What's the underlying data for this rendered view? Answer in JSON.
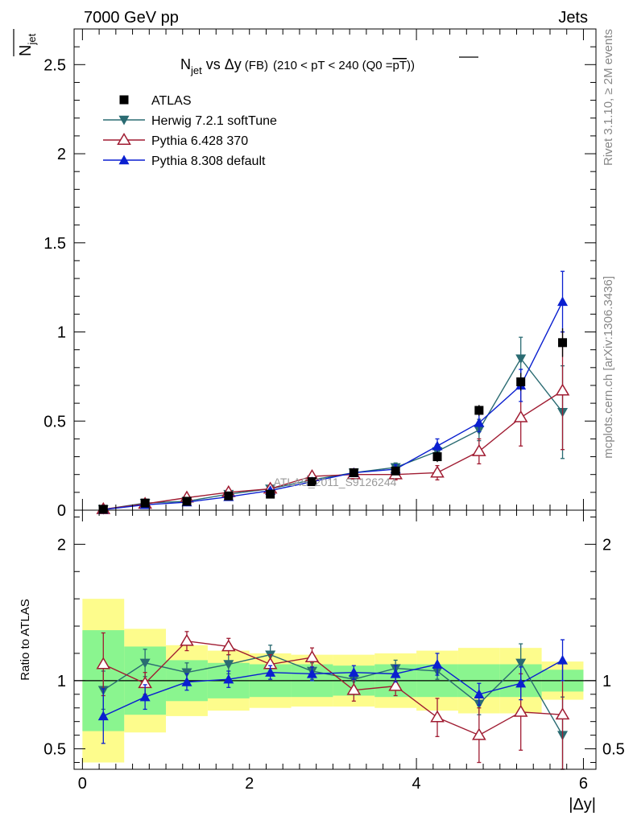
{
  "header": {
    "left": "7000 GeV pp",
    "right": "Jets"
  },
  "side_labels": {
    "top": "Rivet 3.1.10, ≥ 2M events",
    "bottom": "mcplots.cern.ch [arXiv:1306.3436]"
  },
  "chart_data": {
    "type": "line",
    "title_parts": {
      "n": "N",
      "jet_sub": "jet",
      "vs": " vs ",
      "delta": "Δy",
      "fb": "(FB)",
      "range": "(210 < pT < 240 (Q0 =",
      "pt": "pT",
      "close": "))"
    },
    "watermark": "ATLAS_2011_S9126244",
    "ylabel_main": {
      "n": "N",
      "sub": "jet"
    },
    "ylabel_ratio": "Ratio to ATLAS",
    "xlabel": "|Δy|",
    "xlim": [
      -0.1,
      6.15
    ],
    "ylim_main": [
      0,
      2.7
    ],
    "ylim_ratio": [
      0.35,
      2.25
    ],
    "x_ticks": [
      "0",
      "2",
      "4",
      "6"
    ],
    "y_ticks_main": [
      "0",
      "0.5",
      "1",
      "1.5",
      "2",
      "2.5"
    ],
    "y_ticks_ratio": [
      "0.5",
      "1",
      "2"
    ],
    "x": [
      0.25,
      0.75,
      1.25,
      1.75,
      2.25,
      2.75,
      3.25,
      3.75,
      4.25,
      4.75,
      5.25,
      5.75
    ],
    "bin_edges": [
      0.0,
      0.5,
      1.0,
      1.5,
      2.0,
      2.5,
      3.0,
      3.5,
      4.0,
      4.5,
      5.0,
      5.5,
      6.0
    ],
    "data": {
      "name": "ATLAS",
      "color": "#000000",
      "values": [
        0.005,
        0.04,
        0.05,
        0.08,
        0.09,
        0.16,
        0.21,
        0.22,
        0.3,
        0.56,
        0.72,
        0.94
      ],
      "errors": [
        0.003,
        0.005,
        0.006,
        0.008,
        0.01,
        0.012,
        0.015,
        0.02,
        0.03,
        0.03,
        0.05,
        0.08
      ]
    },
    "band_inner": [
      0.37,
      0.25,
      0.15,
      0.13,
      0.12,
      0.12,
      0.11,
      0.12,
      0.12,
      0.12,
      0.12,
      0.08
    ],
    "band_outer": [
      0.6,
      0.38,
      0.26,
      0.22,
      0.2,
      0.19,
      0.19,
      0.2,
      0.22,
      0.24,
      0.24,
      0.14
    ],
    "series": [
      {
        "name": "Herwig 7.2.1 softTune",
        "color": "#2a6b72",
        "marker": "triangle-down",
        "values": [
          0.004,
          0.04,
          0.05,
          0.09,
          0.12,
          0.17,
          0.21,
          0.24,
          0.33,
          0.45,
          0.85,
          0.55
        ],
        "errors": [
          0.002,
          0.006,
          0.006,
          0.01,
          0.012,
          0.015,
          0.02,
          0.025,
          0.04,
          0.06,
          0.12,
          0.26
        ],
        "ratio": [
          0.93,
          1.13,
          1.06,
          1.12,
          1.19,
          1.07,
          1.01,
          1.09,
          1.07,
          0.83,
          1.13,
          0.6
        ],
        "ratio_err": [
          0.14,
          0.1,
          0.07,
          0.07,
          0.07,
          0.06,
          0.05,
          0.06,
          0.06,
          0.08,
          0.14,
          0.28
        ]
      },
      {
        "name": "Pythia 6.428 370",
        "color": "#a01c32",
        "marker": "triangle-open",
        "values": [
          0.005,
          0.035,
          0.07,
          0.1,
          0.12,
          0.19,
          0.2,
          0.2,
          0.21,
          0.33,
          0.52,
          0.67
        ],
        "errors": [
          0.003,
          0.006,
          0.008,
          0.012,
          0.015,
          0.02,
          0.025,
          0.03,
          0.04,
          0.07,
          0.16,
          0.33
        ],
        "ratio": [
          1.12,
          0.98,
          1.29,
          1.25,
          1.12,
          1.17,
          0.93,
          0.96,
          0.73,
          0.6,
          0.77,
          0.75
        ],
        "ratio_err": [
          0.23,
          0.08,
          0.07,
          0.06,
          0.07,
          0.07,
          0.08,
          0.07,
          0.14,
          0.2,
          0.28,
          0.4
        ]
      },
      {
        "name": "Pythia 8.308 default",
        "color": "#0a1fd0",
        "marker": "triangle-up",
        "values": [
          0.003,
          0.03,
          0.045,
          0.075,
          0.11,
          0.16,
          0.21,
          0.23,
          0.36,
          0.49,
          0.7,
          1.17
        ],
        "errors": [
          0.002,
          0.005,
          0.006,
          0.008,
          0.01,
          0.014,
          0.02,
          0.025,
          0.04,
          0.05,
          0.09,
          0.17
        ],
        "ratio": [
          0.74,
          0.88,
          0.99,
          1.01,
          1.06,
          1.05,
          1.06,
          1.05,
          1.12,
          0.9,
          0.98,
          1.15
        ],
        "ratio_err": [
          0.2,
          0.09,
          0.06,
          0.06,
          0.05,
          0.05,
          0.05,
          0.06,
          0.08,
          0.08,
          0.12,
          0.15
        ]
      }
    ]
  }
}
